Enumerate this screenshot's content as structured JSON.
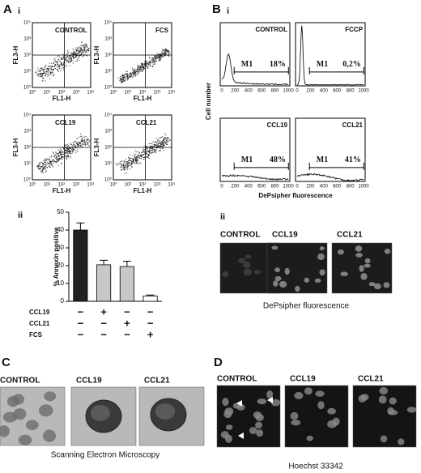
{
  "panel_a": {
    "label": "A",
    "sub1": "i",
    "sub2": "ii",
    "scatter": [
      {
        "title": "CONTROL"
      },
      {
        "title": "FCS"
      },
      {
        "title": "CCL19"
      },
      {
        "title": "CCL21"
      }
    ],
    "x_label": "FL1-H",
    "y_label": "FL3-H",
    "ticks": [
      "10⁰",
      "10¹",
      "10²",
      "10³",
      "10⁴"
    ]
  },
  "chart_data": {
    "type": "bar",
    "y_label": "% Annexin positive",
    "categories": [
      null,
      null,
      null,
      null
    ],
    "values": [
      40,
      20.5,
      19.5,
      3
    ],
    "errors": [
      4,
      2.5,
      3,
      0.5
    ],
    "colors": [
      "#222222",
      "#c8c8c8",
      "#c8c8c8",
      "#ffffff"
    ],
    "ylim": [
      0,
      50
    ],
    "yticks": [
      0,
      10,
      20,
      30,
      40,
      50
    ],
    "treatments": [
      {
        "label": "CCL19",
        "signs": [
          "−",
          "+",
          "−",
          "−"
        ]
      },
      {
        "label": "CCL21",
        "signs": [
          "−",
          "−",
          "+",
          "−"
        ]
      },
      {
        "label": "FCS",
        "signs": [
          "−",
          "−",
          "−",
          "+"
        ]
      }
    ]
  },
  "panel_b": {
    "label": "B",
    "sub1": "i",
    "sub2": "ii",
    "histograms": [
      {
        "title": "CONTROL",
        "gate": "M1",
        "percent": "18%"
      },
      {
        "title": "FCCP",
        "gate": "M1",
        "percent": "0,2%"
      },
      {
        "title": "CCL19",
        "gate": "M1",
        "percent": "48%"
      },
      {
        "title": "CCL21",
        "gate": "M1",
        "percent": "41%"
      }
    ],
    "y_label": "Cell number",
    "x_label": "DePsipher fluorescence",
    "ticks": [
      "0",
      "200",
      "400",
      "600",
      "800",
      "1000"
    ],
    "images": [
      "CONTROL",
      "CCL19",
      "CCL21"
    ],
    "caption": "DePsipher fluorescence"
  },
  "panel_c": {
    "label": "C",
    "images": [
      "CONTROL",
      "CCL19",
      "CCL21"
    ],
    "caption": "Scanning Electron Microscopy"
  },
  "panel_d": {
    "label": "D",
    "images": [
      "CONTROL",
      "CCL19",
      "CCL21"
    ],
    "caption": "Hoechst 33342"
  }
}
